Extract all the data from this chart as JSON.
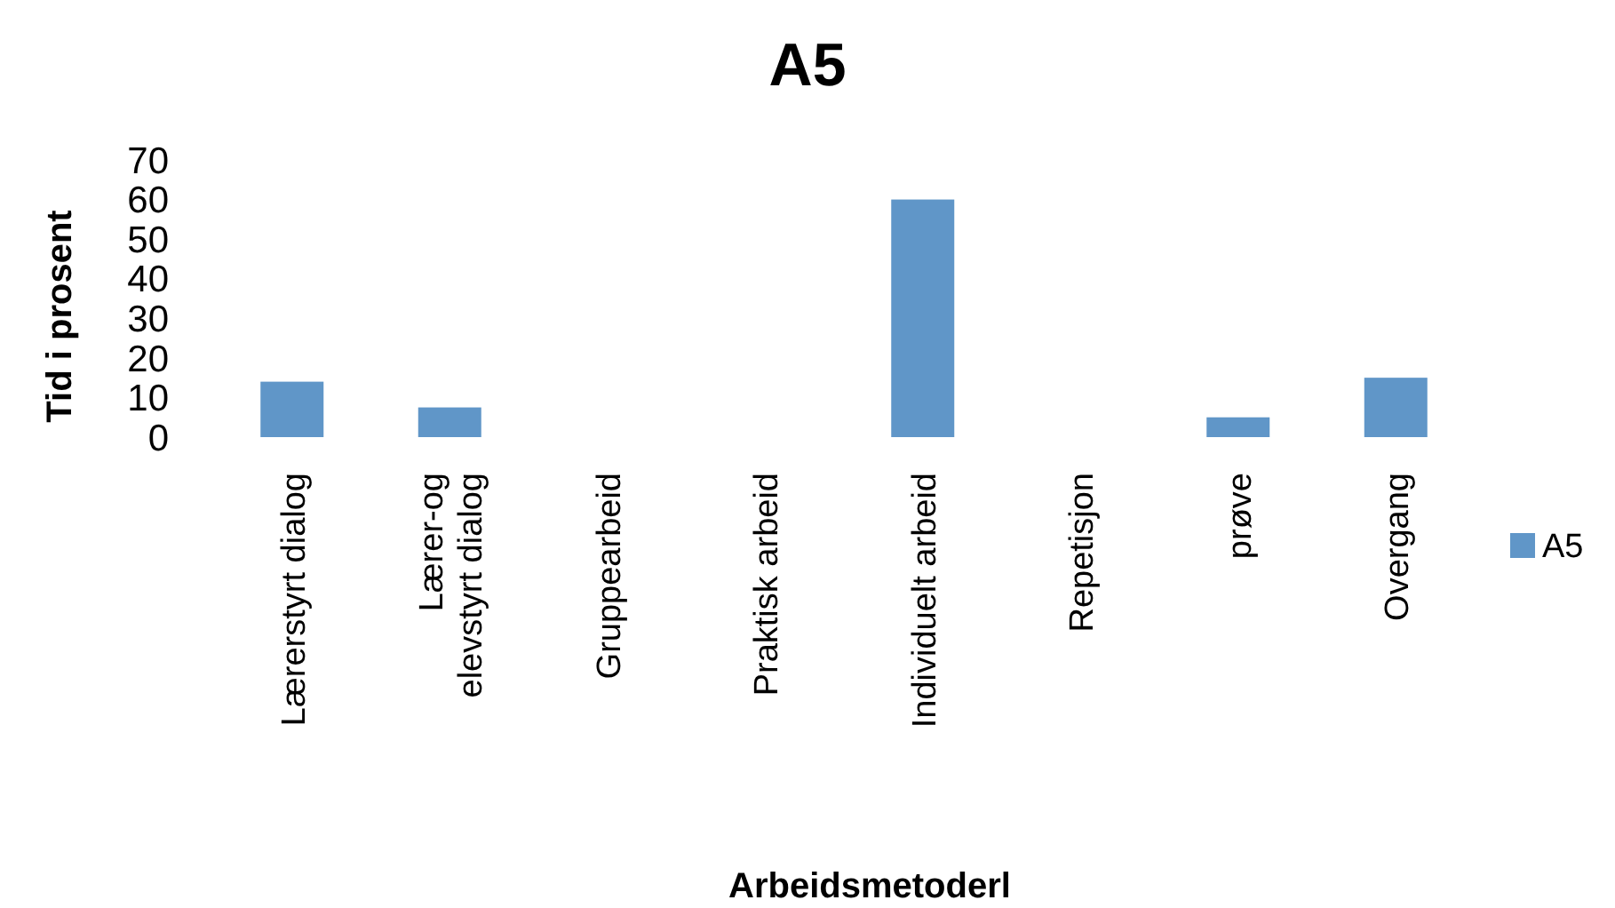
{
  "chart_data": {
    "type": "bar",
    "title": "A5",
    "xlabel": "Arbeidsmetoderl",
    "ylabel": "Tid i prosent",
    "categories": [
      "Lærerstyrt dialog",
      "Lærer-og\nelevstyrt dialog",
      "Gruppearbeid",
      "Praktisk arbeid",
      "Individuelt arbeid",
      "Repetisjon",
      "prøve",
      "Overgang"
    ],
    "series": [
      {
        "name": "A5",
        "color": "#6096c8",
        "values": [
          14,
          7.5,
          0,
          0,
          60,
          0,
          5,
          15
        ]
      }
    ],
    "ylim": [
      0,
      70
    ],
    "yticks": [
      0,
      10,
      20,
      30,
      40,
      50,
      60,
      70
    ],
    "grid": false,
    "legend": "right"
  }
}
